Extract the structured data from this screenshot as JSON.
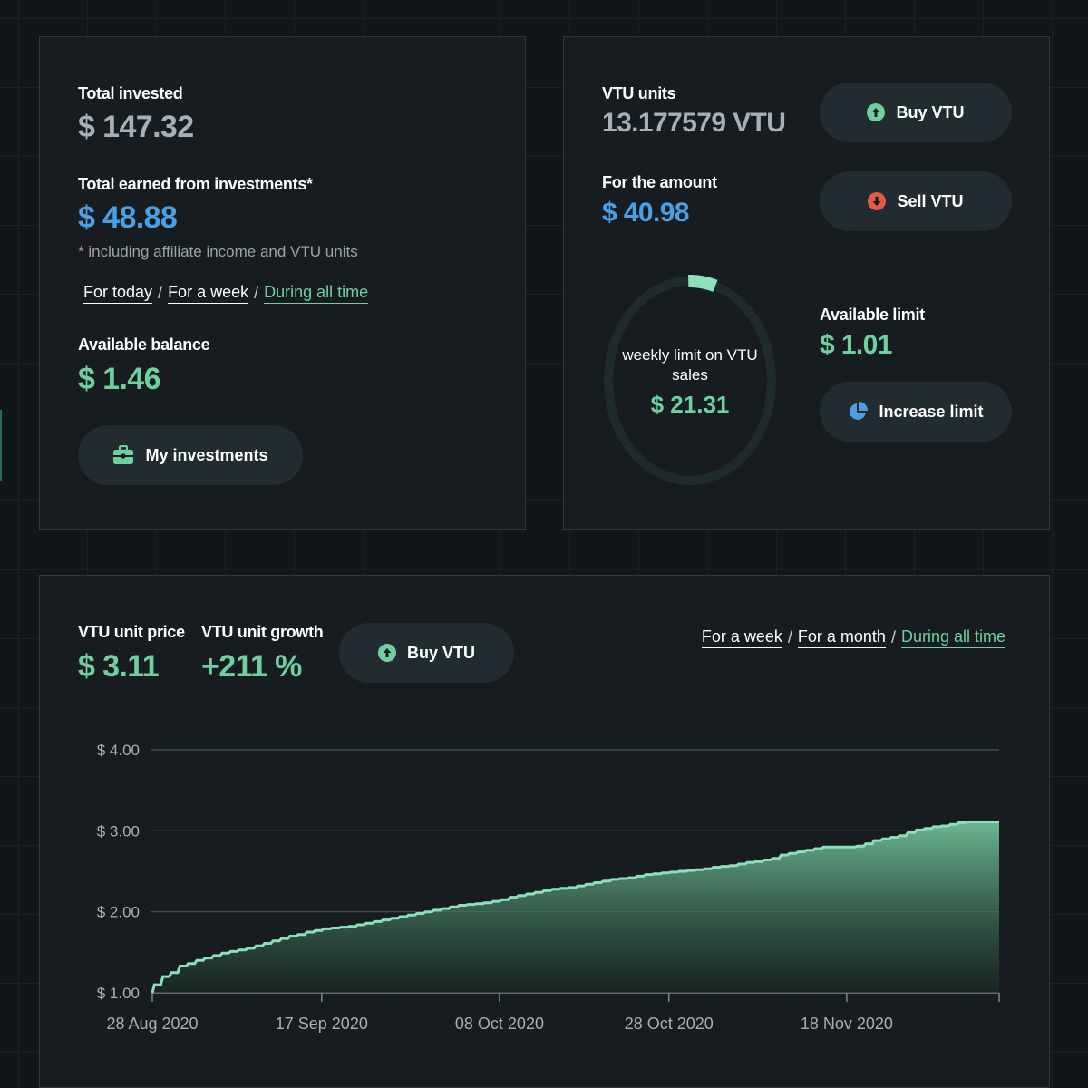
{
  "summary": {
    "total_invested_label": "Total invested",
    "total_invested_value": "$ 147.32",
    "total_earned_label": "Total earned from investments*",
    "total_earned_value": "$ 48.88",
    "footnote": "* including affiliate income and VTU units",
    "periods": [
      {
        "label": "For today",
        "active": false
      },
      {
        "label": "For a week",
        "active": false
      },
      {
        "label": "During all time",
        "active": true
      }
    ],
    "separator": "/",
    "available_balance_label": "Available balance",
    "available_balance_value": "$ 1.46",
    "my_investments_label": "My investments",
    "my_investments_icon": "briefcase-icon"
  },
  "vtu": {
    "units_label": "VTU units",
    "units_value": "13.177579 VTU",
    "amount_label": "For the amount",
    "amount_value": "$ 40.98",
    "buy_label": "Buy VTU",
    "buy_icon": "arrow-up-circle-icon",
    "sell_label": "Sell VTU",
    "sell_icon": "arrow-down-circle-icon",
    "weekly_limit_text": "weekly limit on VTU sales",
    "weekly_limit_value": "$ 21.31",
    "weekly_limit_used_fraction": 0.047,
    "available_limit_label": "Available limit",
    "available_limit_value": "$ 1.01",
    "increase_limit_label": "Increase limit",
    "increase_limit_icon": "pie-chart-icon"
  },
  "price": {
    "unit_price_label": "VTU unit price",
    "unit_price_value": "$ 3.11",
    "unit_growth_label": "VTU unit growth",
    "unit_growth_value": "+211 %",
    "buy_label": "Buy VTU",
    "periods": [
      {
        "label": "For a week",
        "active": false
      },
      {
        "label": "For a month",
        "active": false
      },
      {
        "label": "During all time",
        "active": true
      }
    ],
    "separator": "/"
  },
  "colors": {
    "accent_green": "#6fcf9f",
    "accent_blue": "#4a9fe6",
    "sell_red": "#e05a47",
    "card_bg": "#161c1f"
  },
  "chart_data": {
    "type": "area",
    "title": "",
    "xlabel": "",
    "ylabel": "",
    "ylim": [
      1.0,
      4.0
    ],
    "y_ticks": [
      "$ 1.00",
      "$ 2.00",
      "$ 3.00",
      "$ 4.00"
    ],
    "y_tick_values": [
      1.0,
      2.0,
      3.0,
      4.0
    ],
    "x_ticks": [
      "28 Aug 2020",
      "17 Sep 2020",
      "08 Oct 2020",
      "28 Oct 2020",
      "18 Nov 2020"
    ],
    "x_tick_days": [
      0,
      20,
      41,
      61,
      82
    ],
    "x_range_days": [
      0,
      100
    ],
    "grid": true,
    "series": [
      {
        "x": [
          0,
          1,
          2,
          3,
          4,
          5,
          6,
          7,
          8,
          9,
          10,
          11,
          12,
          13,
          14,
          15,
          16,
          17,
          18,
          19,
          20,
          21,
          22,
          23,
          24,
          25,
          26,
          27,
          28,
          29,
          30,
          31,
          32,
          33,
          34,
          35,
          36,
          37,
          38,
          39,
          40,
          41,
          42,
          43,
          44,
          45,
          46,
          47,
          48,
          49,
          50,
          51,
          52,
          53,
          54,
          55,
          56,
          57,
          58,
          59,
          60,
          61,
          62,
          63,
          64,
          65,
          66,
          67,
          68,
          69,
          70,
          71,
          72,
          73,
          74,
          75,
          76,
          77,
          78,
          79,
          80,
          81,
          82,
          83,
          84,
          85,
          86,
          87,
          88,
          89,
          90,
          91,
          92,
          93,
          94,
          95,
          96,
          97,
          98,
          99,
          100
        ],
        "y": [
          1.0,
          1.1,
          1.2,
          1.25,
          1.33,
          1.36,
          1.4,
          1.43,
          1.46,
          1.49,
          1.51,
          1.53,
          1.55,
          1.58,
          1.61,
          1.64,
          1.67,
          1.7,
          1.72,
          1.75,
          1.77,
          1.79,
          1.8,
          1.81,
          1.82,
          1.84,
          1.86,
          1.88,
          1.9,
          1.92,
          1.94,
          1.96,
          1.98,
          2.0,
          2.02,
          2.04,
          2.06,
          2.08,
          2.09,
          2.1,
          2.11,
          2.13,
          2.15,
          2.18,
          2.2,
          2.22,
          2.24,
          2.26,
          2.28,
          2.29,
          2.3,
          2.32,
          2.34,
          2.36,
          2.38,
          2.4,
          2.41,
          2.42,
          2.44,
          2.46,
          2.47,
          2.48,
          2.49,
          2.5,
          2.51,
          2.52,
          2.53,
          2.55,
          2.56,
          2.57,
          2.59,
          2.61,
          2.62,
          2.64,
          2.66,
          2.7,
          2.72,
          2.74,
          2.76,
          2.78,
          2.8,
          2.8,
          2.8,
          2.8,
          2.81,
          2.84,
          2.88,
          2.9,
          2.92,
          2.94,
          2.98,
          3.01,
          3.03,
          3.05,
          3.06,
          3.08,
          3.1,
          3.11,
          3.11,
          3.11,
          3.11
        ]
      }
    ]
  }
}
